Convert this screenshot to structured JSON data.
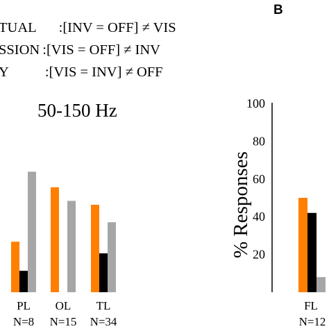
{
  "legend": [
    {
      "label": "TUAL",
      "condition": ":[INV = OFF] ≠ VIS"
    },
    {
      "label": "SSION",
      "condition": ":[VIS = OFF] ≠ INV"
    },
    {
      "label": "Y",
      "condition": ":[VIS = INV] ≠ OFF"
    }
  ],
  "panel_letter": "B",
  "chart_data": [
    {
      "type": "bar",
      "title": "50-150 Hz",
      "categories": [
        "PL",
        "OL",
        "TL"
      ],
      "category_n": [
        "N=8",
        "N=15",
        "N=34"
      ],
      "ylim": [
        0,
        100
      ],
      "colors": [
        "#ff8000",
        "#000000",
        "#a6a6a6"
      ],
      "series": [
        {
          "values": [
            26,
            54,
            45
          ]
        },
        {
          "values": [
            11,
            0,
            20
          ]
        },
        {
          "values": [
            62,
            47,
            36
          ]
        }
      ]
    },
    {
      "type": "bar",
      "ylabel": "% Responses",
      "ylim": [
        0,
        100
      ],
      "yticks": [
        20,
        40,
        60,
        80,
        100
      ],
      "categories": [
        "FL"
      ],
      "category_n": [
        "N=12"
      ],
      "colors": [
        "#ff8000",
        "#000000",
        "#a6a6a6"
      ],
      "series": [
        {
          "values": [
            50
          ]
        },
        {
          "values": [
            42
          ]
        },
        {
          "values": [
            8
          ]
        }
      ]
    }
  ]
}
